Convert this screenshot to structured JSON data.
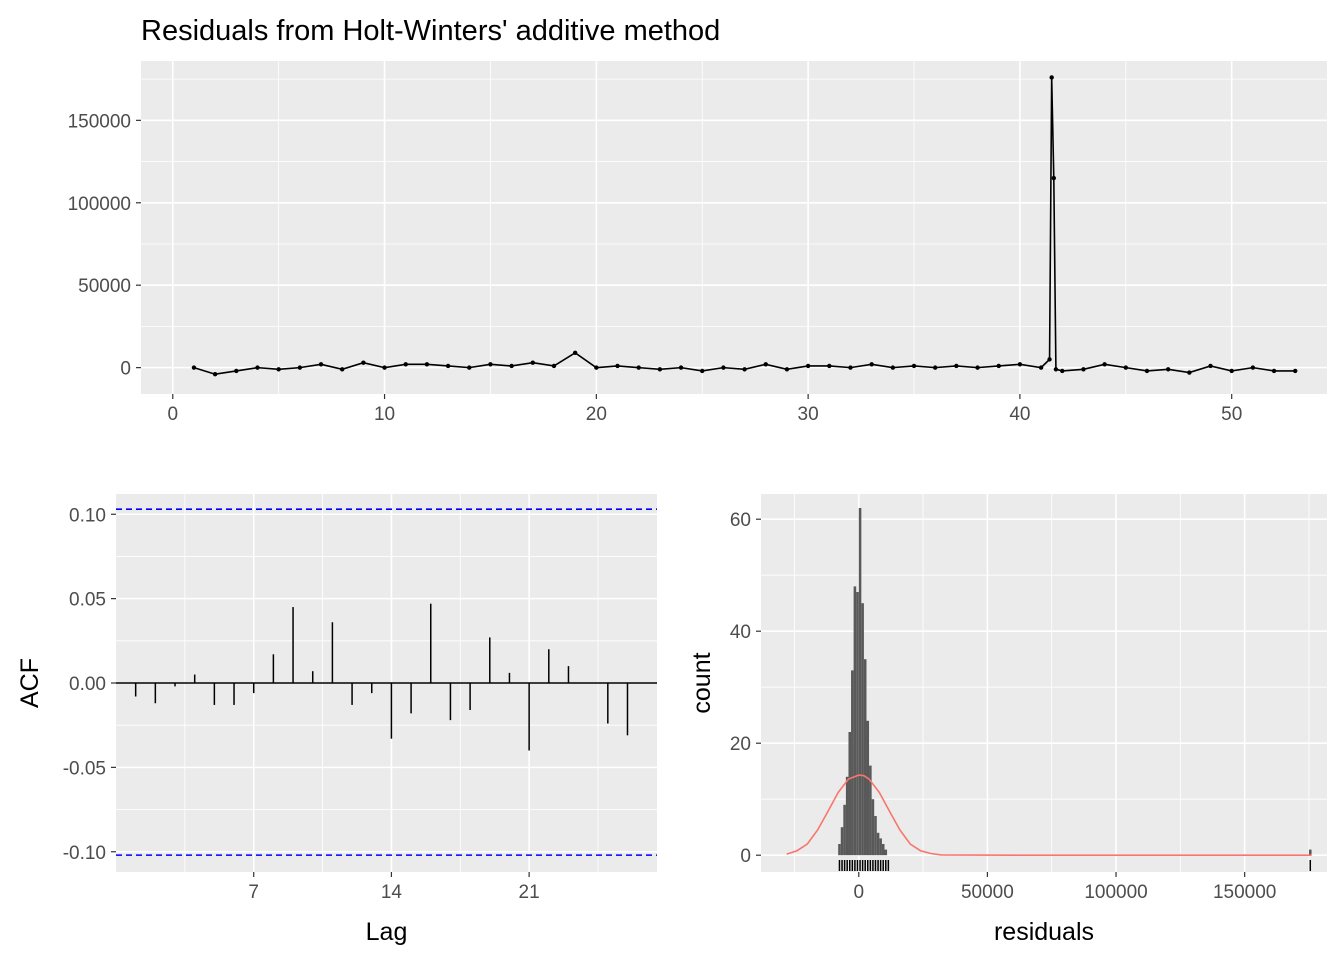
{
  "chart_data": [
    {
      "type": "line",
      "title": "Residuals from Holt-Winters' additive method",
      "xlabel": "",
      "ylabel": "",
      "xlim": [
        -1.5,
        54.5
      ],
      "ylim": [
        -16000,
        186000
      ],
      "xticks": [
        0,
        10,
        20,
        30,
        40,
        50
      ],
      "xtick_labels": [
        "0",
        "10",
        "20",
        "30",
        "40",
        "50"
      ],
      "yticks": [
        0,
        50000,
        100000,
        150000
      ],
      "ytick_labels": [
        "0",
        "50000",
        "100000",
        "150000"
      ],
      "grid": true,
      "points_shown": true,
      "series": [
        {
          "x": [
            1.0,
            2.0,
            3.0,
            4.0,
            5.0,
            6.0,
            7.0,
            8.0,
            9.0,
            10.0,
            11.0,
            12.0,
            13.0,
            14.0,
            15.0,
            16.0,
            17.0,
            18.0,
            19.0,
            20.0,
            21.0,
            22.0,
            23.0,
            24.0,
            25.0,
            26.0,
            27.0,
            28.0,
            29.0,
            30.0,
            31.0,
            32.0,
            33.0,
            34.0,
            35.0,
            36.0,
            37.0,
            38.0,
            39.0,
            40.0,
            41.0,
            41.4,
            41.5,
            41.6,
            41.7,
            42.0,
            43.0,
            44.0,
            45.0,
            46.0,
            47.0,
            48.0,
            49.0,
            50.0,
            51.0,
            52.0,
            53.0
          ],
          "y": [
            0,
            -4000,
            -2000,
            0,
            -1000,
            0,
            2000,
            -1000,
            3000,
            0,
            2000,
            2000,
            1000,
            0,
            2000,
            1000,
            3000,
            1000,
            9000,
            0,
            1000,
            0,
            -1000,
            0,
            -2000,
            0,
            -1000,
            2000,
            -1000,
            1000,
            1000,
            0,
            2000,
            0,
            1000,
            0,
            1000,
            0,
            1000,
            2000,
            0,
            5000,
            176000,
            115000,
            -1000,
            -2000,
            -1000,
            2000,
            0,
            -2000,
            -1000,
            -3000,
            1000,
            -2000,
            0,
            -2000,
            -2000
          ]
        }
      ]
    },
    {
      "type": "bar",
      "xlabel": "Lag",
      "ylabel": "ACF",
      "xlim": [
        0.0,
        27.5
      ],
      "ylim": [
        -0.112,
        0.112
      ],
      "xticks": [
        7,
        14,
        21
      ],
      "xtick_labels": [
        "7",
        "14",
        "21"
      ],
      "yticks": [
        0.1,
        0.05,
        0.0,
        -0.05,
        -0.1
      ],
      "ytick_labels": [
        "0.10",
        "0.05",
        "0.00",
        "-0.05",
        "-0.10"
      ],
      "grid": true,
      "ci_upper": 0.103,
      "ci_lower": -0.102,
      "lags": [
        1,
        2,
        3,
        4,
        5,
        6,
        7,
        8,
        9,
        10,
        11,
        12,
        13,
        14,
        15,
        16,
        17,
        18,
        19,
        20,
        21,
        22,
        23,
        24,
        25,
        26
      ],
      "values": [
        -0.008,
        -0.012,
        -0.002,
        0.005,
        -0.013,
        -0.013,
        -0.006,
        0.017,
        0.045,
        0.007,
        0.036,
        -0.013,
        -0.006,
        -0.033,
        -0.018,
        0.047,
        -0.022,
        -0.016,
        0.027,
        0.006,
        -0.04,
        0.02,
        0.01,
        0.0,
        -0.024,
        -0.031
      ]
    },
    {
      "type": "histogram",
      "xlabel": "residuals",
      "ylabel": "count",
      "xlim": [
        -38000,
        182000
      ],
      "ylim": [
        -3,
        64.5
      ],
      "xticks": [
        0,
        50000,
        100000,
        150000
      ],
      "xtick_labels": [
        "0",
        "50000",
        "100000",
        "150000"
      ],
      "yticks": [
        0,
        20,
        40,
        60
      ],
      "ytick_labels": [
        "0",
        "20",
        "40",
        "60"
      ],
      "grid": true,
      "bin_width": 1000,
      "bin_centers": [
        -7500,
        -6500,
        -5500,
        -4500,
        -3500,
        -2500,
        -1500,
        -500,
        500,
        1500,
        2500,
        3500,
        4500,
        5500,
        6500,
        7500,
        8500,
        9500,
        10500,
        175500
      ],
      "counts": [
        2,
        5,
        9,
        14,
        22,
        33,
        48,
        47,
        62,
        45,
        35,
        24,
        16,
        10,
        7,
        4,
        3,
        2,
        1,
        1
      ],
      "density_curve": {
        "color": "#F8766D",
        "x": [
          -28000,
          -24000,
          -20000,
          -16000,
          -12000,
          -8000,
          -4000,
          0,
          2000,
          4000,
          8000,
          12000,
          16000,
          20000,
          24000,
          28000,
          32000,
          60000,
          100000,
          140000,
          176000
        ],
        "y": [
          0.2,
          0.8,
          2.0,
          4.5,
          7.8,
          11.2,
          13.6,
          14.3,
          14.2,
          13.6,
          11.2,
          7.8,
          4.5,
          2.0,
          0.8,
          0.3,
          0.05,
          0,
          0,
          0,
          0
        ]
      },
      "rug": [
        -7500,
        -6500,
        -5500,
        -4500,
        -3500,
        -2500,
        -1500,
        -500,
        500,
        1500,
        2500,
        3500,
        4500,
        5500,
        6500,
        7500,
        8500,
        9500,
        10500,
        11500,
        175500
      ]
    }
  ]
}
